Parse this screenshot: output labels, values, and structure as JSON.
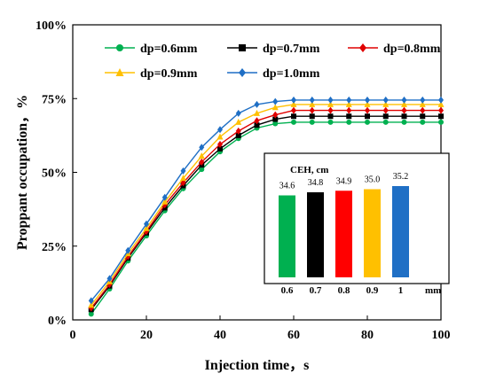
{
  "chart_data": [
    {
      "type": "line",
      "xlabel": "Injection time，s",
      "ylabel": "Proppant occupation，%",
      "xlim": [
        0,
        100
      ],
      "ylim": [
        0,
        100
      ],
      "x_ticks": [
        "0",
        "20",
        "40",
        "60",
        "80",
        "100"
      ],
      "y_ticks": [
        "0%",
        "25%",
        "50%",
        "75%",
        "100%"
      ],
      "grid": false,
      "legend_position": "top-left",
      "x": [
        5,
        10,
        15,
        20,
        25,
        30,
        35,
        40,
        45,
        50,
        55,
        60,
        65,
        70,
        75,
        80,
        85,
        90,
        95,
        100
      ],
      "series": [
        {
          "name": "dp=0.6mm",
          "color": "#00b050",
          "marker": "circle",
          "values": [
            2,
            10.5,
            20,
            28.5,
            37,
            44.5,
            51,
            57,
            61.5,
            65,
            66.5,
            67,
            67,
            67,
            67,
            67,
            67,
            67,
            67,
            67
          ]
        },
        {
          "name": "dp=0.7mm",
          "color": "#000000",
          "marker": "square",
          "values": [
            3.5,
            11.5,
            21,
            29.5,
            38,
            45.5,
            52.5,
            58,
            62.5,
            66,
            68,
            69,
            69,
            69,
            69,
            69,
            69,
            69,
            69,
            69
          ]
        },
        {
          "name": "dp=0.8mm",
          "color": "#e00000",
          "marker": "diamond",
          "values": [
            4,
            12,
            21.5,
            30,
            39,
            46.5,
            53.5,
            59.5,
            64,
            67.5,
            69.5,
            71,
            71,
            71,
            71,
            71,
            71,
            71,
            71,
            71
          ]
        },
        {
          "name": "dp=0.9mm",
          "color": "#ffc000",
          "marker": "triangle",
          "values": [
            5,
            13,
            22.5,
            31,
            40,
            48,
            55.5,
            62,
            67,
            70,
            72,
            73,
            73,
            73,
            73,
            73,
            73,
            73,
            73,
            73
          ]
        },
        {
          "name": "dp=1.0mm",
          "color": "#1f6fc5",
          "marker": "diamond",
          "values": [
            6.5,
            14,
            23.5,
            32.5,
            41.5,
            50.5,
            58.5,
            64.5,
            70,
            73,
            74,
            74.5,
            74.5,
            74.5,
            74.5,
            74.5,
            74.5,
            74.5,
            74.5,
            74.5
          ]
        }
      ]
    },
    {
      "type": "bar",
      "title": "CEH, cm",
      "xlabel": "mm",
      "categories": [
        "0.6",
        "0.7",
        "0.8",
        "0.9",
        "1"
      ],
      "values": [
        34.6,
        34.8,
        34.9,
        35.0,
        35.2
      ],
      "value_labels": [
        "34.6",
        "34.8",
        "34.9",
        "35.0",
        "35.2"
      ],
      "colors": [
        "#00b050",
        "#000000",
        "#ff0000",
        "#ffc000",
        "#1f6fc5"
      ]
    }
  ]
}
